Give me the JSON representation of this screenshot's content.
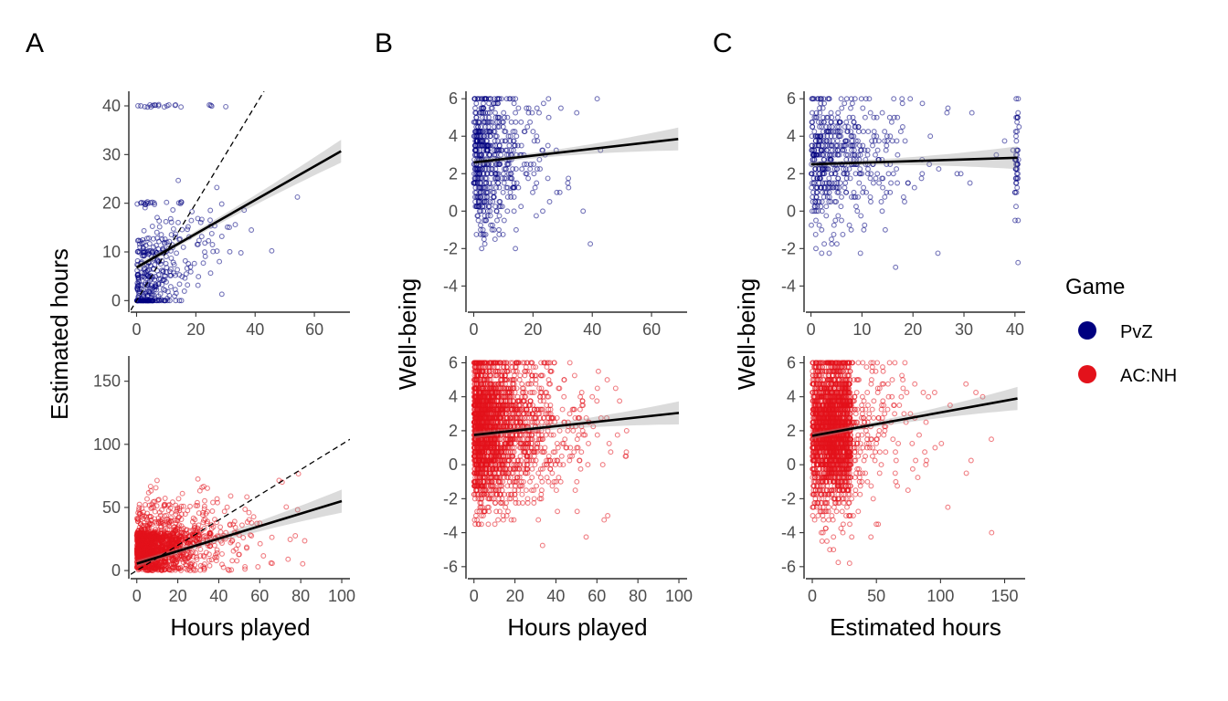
{
  "panel_labels": [
    "A",
    "B",
    "C"
  ],
  "legend": {
    "title": "Game",
    "items": [
      {
        "label": "PvZ",
        "color": "#000080"
      },
      {
        "label": "AC:NH",
        "color": "#e3121b"
      }
    ]
  },
  "chart_data": [
    {
      "type": "scatter",
      "panel": "A",
      "game": "PvZ",
      "ylabel": "Estimated hours",
      "xlabel": "",
      "xlim": [
        -2,
        72
      ],
      "ylim": [
        -2,
        43
      ],
      "xticks": [
        0,
        20,
        40,
        60
      ],
      "yticks": [
        0,
        10,
        20,
        30,
        40
      ],
      "point_color": "#000080",
      "fit": {
        "x": [
          0,
          69
        ],
        "y": [
          6.8,
          30.7
        ]
      },
      "reference_line": "y = x (dashed)",
      "points": {
        "seed": 11,
        "n": 420,
        "mode": "a_pvz"
      }
    },
    {
      "type": "scatter",
      "panel": "A",
      "game": "AC:NH",
      "ylabel": "",
      "xlabel": "Hours played",
      "xlim": [
        -3,
        104
      ],
      "ylim": [
        -5,
        170
      ],
      "xticks": [
        0,
        20,
        40,
        60,
        80,
        100
      ],
      "yticks": [
        0,
        50,
        100,
        150
      ],
      "point_color": "#e3121b",
      "fit": {
        "x": [
          0,
          100
        ],
        "y": [
          5.5,
          55
        ]
      },
      "reference_line": "y = x (dashed)",
      "points": {
        "seed": 23,
        "n": 1700,
        "mode": "a_acnh"
      }
    },
    {
      "type": "scatter",
      "panel": "B",
      "game": "PvZ",
      "ylabel": "",
      "xlabel": "",
      "xlim": [
        -2,
        72
      ],
      "ylim": [
        -5.3,
        6.4
      ],
      "xticks": [
        0,
        20,
        40,
        60
      ],
      "yticks": [
        -4,
        -2,
        0,
        2,
        4,
        6
      ],
      "point_color": "#000080",
      "fit": {
        "x": [
          0,
          69
        ],
        "y": [
          2.6,
          3.85
        ]
      },
      "points": {
        "seed": 37,
        "n": 560,
        "mode": "b_pvz"
      }
    },
    {
      "type": "scatter",
      "panel": "B",
      "game": "AC:NH",
      "ylabel": "",
      "xlabel": "Hours played",
      "xlim": [
        -3,
        104
      ],
      "ylim": [
        -6.6,
        6.4
      ],
      "xticks": [
        0,
        20,
        40,
        60,
        80,
        100
      ],
      "yticks": [
        -6,
        -4,
        -2,
        0,
        2,
        4,
        6
      ],
      "point_color": "#e3121b",
      "fit": {
        "x": [
          0,
          100
        ],
        "y": [
          1.75,
          3.05
        ]
      },
      "points": {
        "seed": 41,
        "n": 2600,
        "mode": "b_acnh"
      }
    },
    {
      "type": "scatter",
      "panel": "C",
      "game": "PvZ",
      "ylabel": "Well-being",
      "xlabel": "",
      "xlim": [
        -1,
        42
      ],
      "ylim": [
        -5.3,
        6.4
      ],
      "xticks": [
        0,
        10,
        20,
        30,
        40
      ],
      "yticks": [
        -4,
        -2,
        0,
        2,
        4,
        6
      ],
      "point_color": "#000080",
      "fit": {
        "x": [
          0,
          40.5
        ],
        "y": [
          2.5,
          2.85
        ]
      },
      "points": {
        "seed": 53,
        "n": 560,
        "mode": "c_pvz"
      }
    },
    {
      "type": "scatter",
      "panel": "C",
      "game": "AC:NH",
      "ylabel": "Well-being",
      "xlabel": "Estimated hours",
      "xlim": [
        -5,
        166
      ],
      "ylim": [
        -6.6,
        6.4
      ],
      "xticks": [
        0,
        50,
        100,
        150
      ],
      "yticks": [
        -6,
        -4,
        -2,
        0,
        2,
        4,
        6
      ],
      "point_color": "#e3121b",
      "fit": {
        "x": [
          0,
          160
        ],
        "y": [
          1.7,
          3.9
        ]
      },
      "points": {
        "seed": 67,
        "n": 2600,
        "mode": "c_acnh"
      }
    }
  ]
}
